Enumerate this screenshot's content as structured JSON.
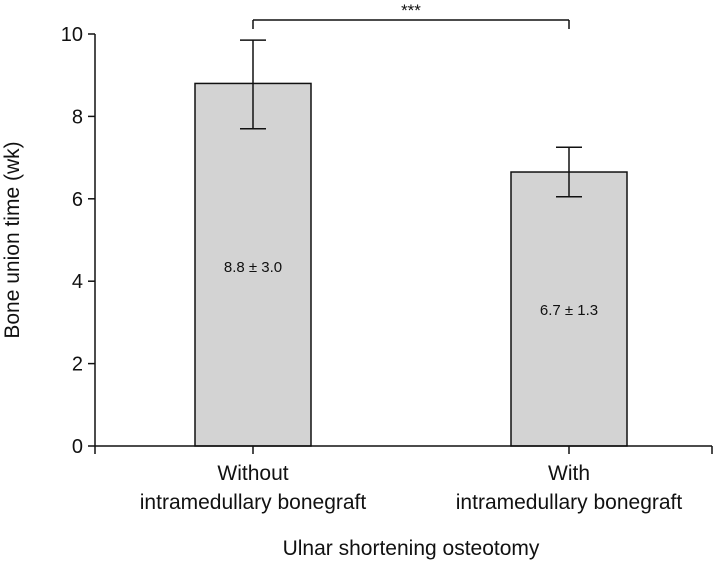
{
  "chart_data": {
    "type": "bar",
    "categories": [
      [
        "Without",
        "intramedullary bonegraft"
      ],
      [
        "With",
        "intramedullary bonegraft"
      ]
    ],
    "values": [
      8.8,
      6.65
    ],
    "error_upper": [
      9.85,
      7.25
    ],
    "error_lower": [
      7.7,
      6.05
    ],
    "data_labels": [
      "8.8 ± 3.0",
      "6.7 ± 1.3"
    ],
    "xlabel": "Ulnar shortening osteotomy",
    "ylabel": "Bone union time (wk)",
    "ylim": [
      0,
      10
    ],
    "yticks": [
      0,
      2,
      4,
      6,
      8,
      10
    ],
    "significance": "***",
    "bar_color": "#d3d3d3",
    "grid": false
  }
}
